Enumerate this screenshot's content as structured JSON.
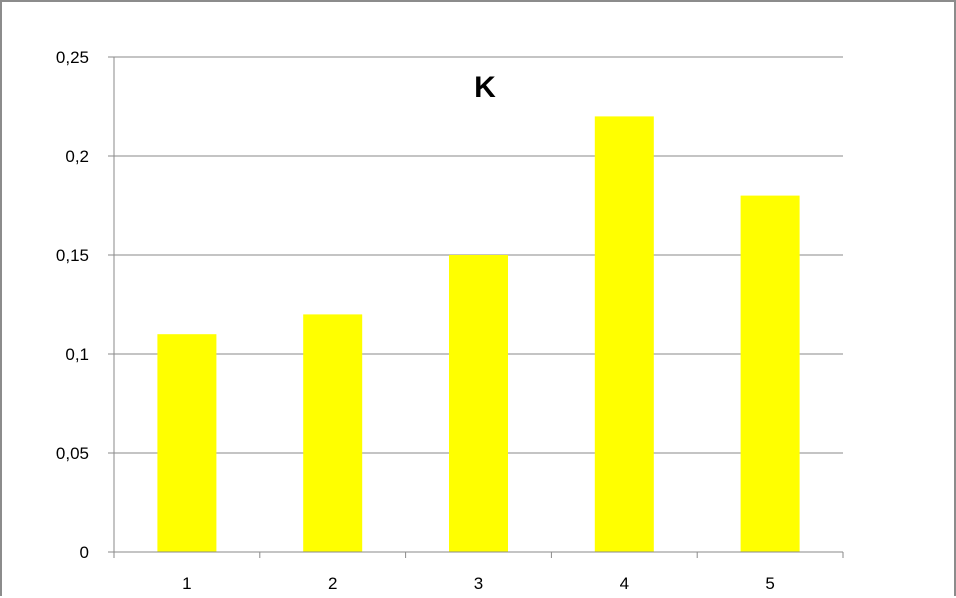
{
  "chart_data": {
    "type": "bar",
    "title": "K",
    "categories": [
      "1",
      "2",
      "3",
      "4",
      "5"
    ],
    "series": [
      {
        "values": [
          0.11,
          0.12,
          0.15,
          0.22,
          0.18
        ]
      }
    ],
    "ylim": [
      0,
      0.25
    ],
    "yticks": [
      0,
      0.05,
      0.1,
      0.15,
      0.2,
      0.25
    ],
    "ytick_labels": [
      "0",
      "0,05",
      "0,1",
      "0,15",
      "0,2",
      "0,25"
    ],
    "xlabel": "",
    "ylabel": "",
    "grid": true,
    "legend": "none",
    "bar_color": "#ffff00"
  }
}
